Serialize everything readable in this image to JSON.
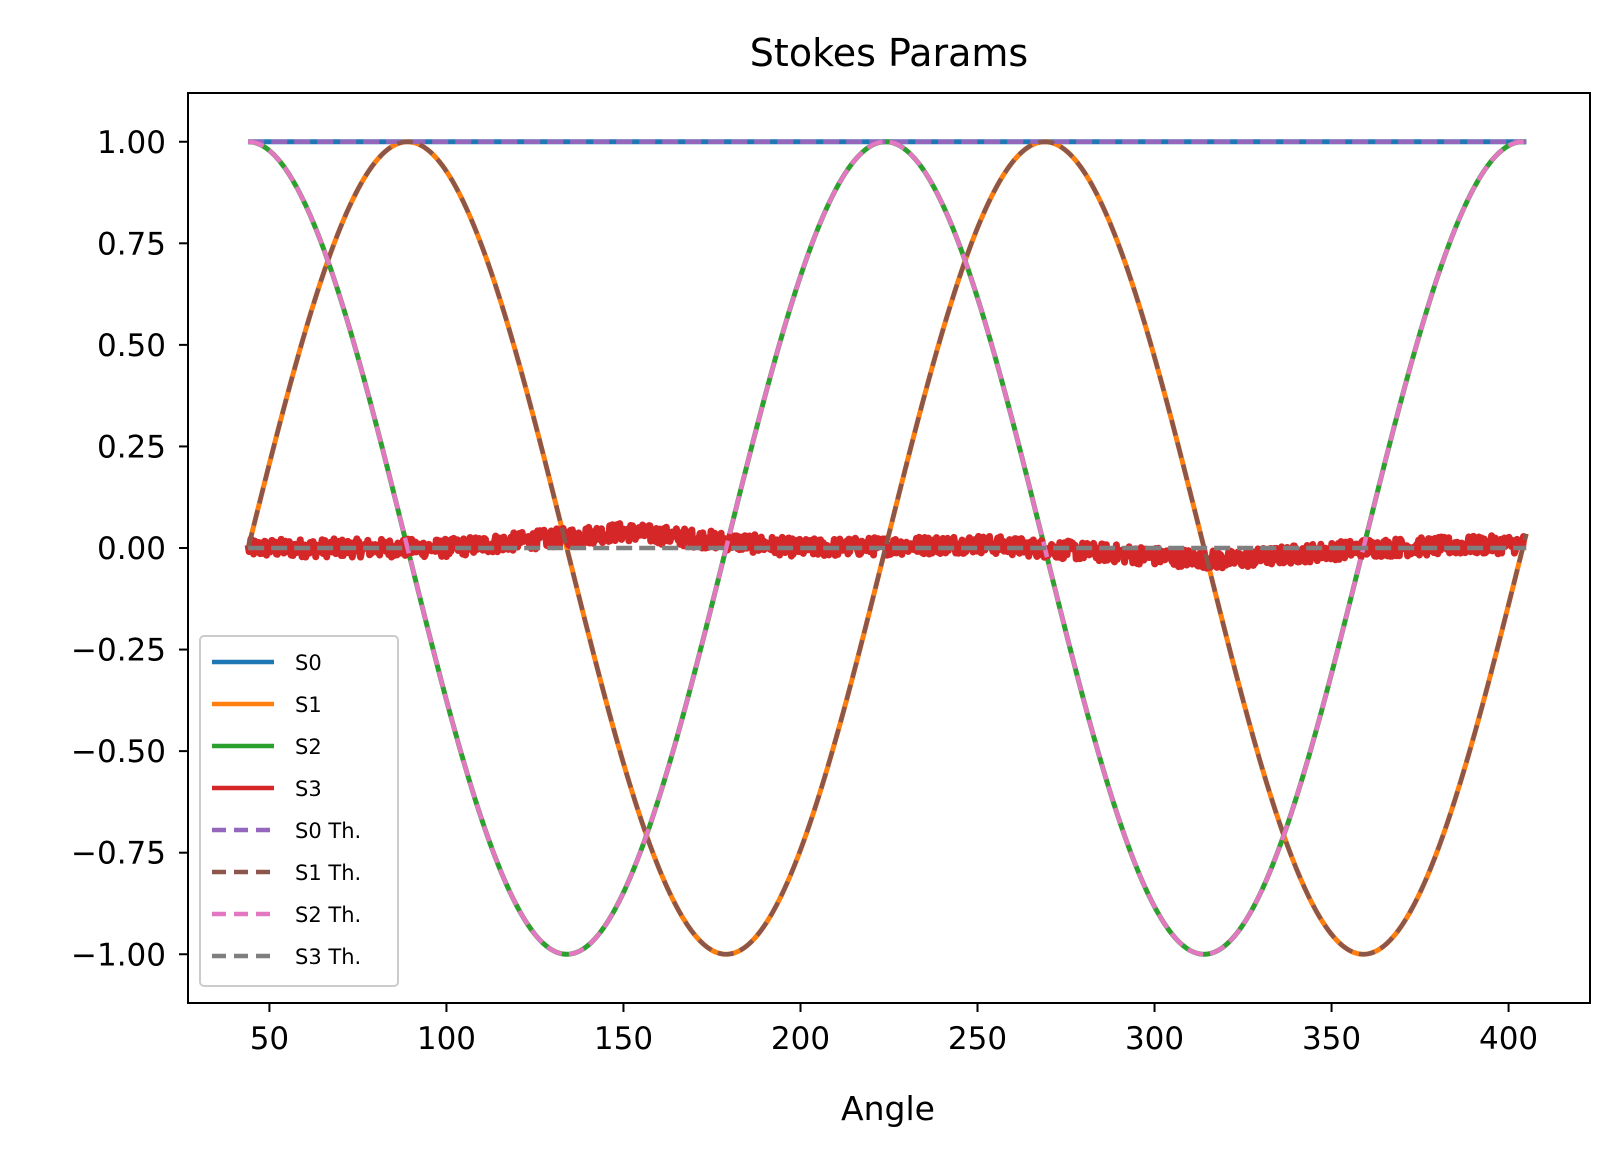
{
  "chart_data": {
    "type": "line",
    "title": "Stokes Params",
    "xlabel": "Angle",
    "ylabel": "",
    "xlim": [
      27,
      423
    ],
    "ylim": [
      -1.12,
      1.12
    ],
    "x_range": [
      44,
      405
    ],
    "xticks": [
      50,
      100,
      150,
      200,
      250,
      300,
      350,
      400
    ],
    "xtick_labels": [
      "50",
      "100",
      "150",
      "200",
      "250",
      "300",
      "350",
      "400"
    ],
    "yticks": [
      1.0,
      0.75,
      0.5,
      0.25,
      0.0,
      -0.25,
      -0.5,
      -0.75,
      -1.0
    ],
    "ytick_labels": [
      "1.00",
      "0.75",
      "0.50",
      "0.25",
      "0.00",
      "−0.25",
      "−0.50",
      "−0.75",
      "−1.00"
    ],
    "legend_position": "lower-left",
    "grid": false,
    "series": [
      {
        "name": "S0",
        "style": "solid",
        "color": "#1f77b4",
        "formula": "1",
        "samples": {
          "x": [
            44,
            90,
            135,
            180,
            225,
            270,
            315,
            360,
            405
          ],
          "y": [
            1.0,
            1.0,
            1.0,
            1.0,
            1.0,
            1.0,
            1.0,
            1.0,
            1.0
          ]
        }
      },
      {
        "name": "S1",
        "style": "solid",
        "color": "#ff7f0e",
        "formula": "sin(2*(x-44))",
        "samples": {
          "x": [
            44,
            90,
            135,
            180,
            225,
            270,
            315,
            360,
            405
          ],
          "y": [
            0.03,
            0.99,
            0.0,
            -1.02,
            0.0,
            0.99,
            0.0,
            -1.0,
            -0.02
          ]
        }
      },
      {
        "name": "S2",
        "style": "solid",
        "color": "#2ca02c",
        "formula": "cos(2*(x-44))",
        "samples": {
          "x": [
            44,
            90,
            135,
            180,
            225,
            270,
            315,
            360,
            405
          ],
          "y": [
            1.01,
            0.0,
            -0.98,
            0.0,
            0.99,
            0.0,
            -1.01,
            0.0,
            1.01
          ]
        }
      },
      {
        "name": "S3",
        "style": "solid",
        "color": "#d62728",
        "formula": "noise",
        "samples": {
          "x": [
            44,
            100,
            150,
            200,
            250,
            300,
            320,
            360,
            405
          ],
          "y": [
            0.0,
            0.0,
            0.04,
            0.0,
            0.01,
            -0.02,
            -0.03,
            0.0,
            0.01
          ]
        }
      },
      {
        "name": "S0 Th.",
        "style": "dashed",
        "color": "#9467bd",
        "formula": "1",
        "samples": {
          "x": [
            44,
            405
          ],
          "y": [
            1.0,
            1.0
          ]
        }
      },
      {
        "name": "S1 Th.",
        "style": "dashed",
        "color": "#8c564b",
        "formula": "sin(2*(x-44))",
        "samples": {
          "x": [
            44,
            90,
            135,
            180,
            225,
            270,
            315,
            360,
            405
          ],
          "y": [
            0.0,
            1.0,
            0.0,
            -1.0,
            0.0,
            1.0,
            0.0,
            -1.0,
            0.0
          ]
        }
      },
      {
        "name": "S2 Th.",
        "style": "dashed",
        "color": "#e377c2",
        "formula": "cos(2*(x-44))",
        "samples": {
          "x": [
            44,
            90,
            135,
            180,
            225,
            270,
            315,
            360,
            405
          ],
          "y": [
            1.0,
            0.0,
            -1.0,
            0.0,
            1.0,
            0.0,
            -1.0,
            0.0,
            1.0
          ]
        }
      },
      {
        "name": "S3 Th.",
        "style": "dashed",
        "color": "#7f7f7f",
        "formula": "0",
        "samples": {
          "x": [
            44,
            405
          ],
          "y": [
            0.0,
            0.0
          ]
        }
      }
    ]
  }
}
